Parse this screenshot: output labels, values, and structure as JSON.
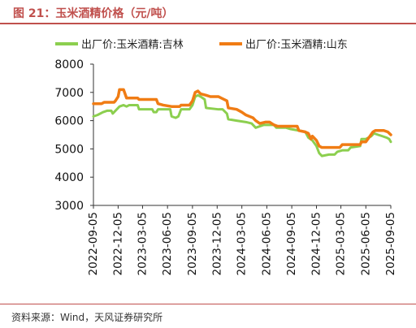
{
  "figure": {
    "title": "图 21：玉米酒精价格（元/吨）"
  },
  "source_note": "资料来源：Wind，天风证券研究所",
  "colors": {
    "accent": "#c0504d",
    "series_jilin": "#8ccf4f",
    "series_shandong": "#f07c14",
    "axis": "#333333"
  },
  "chart_data": {
    "type": "line",
    "title": "",
    "xlabel": "",
    "ylabel": "",
    "ylim": [
      3000,
      8000
    ],
    "yticks": [
      "3000",
      "4000",
      "5000",
      "6000",
      "7000",
      "8000"
    ],
    "xlim": [
      "2022-09-05",
      "2025-09-05"
    ],
    "xticks": [
      "2022-09-05",
      "2022-12-05",
      "2023-03-05",
      "2023-06-05",
      "2023-09-05",
      "2023-12-05",
      "2024-03-05",
      "2024-06-05",
      "2024-09-05",
      "2024-12-05",
      "2025-03-05",
      "2025-06-05",
      "2025-09-05"
    ],
    "grid": false,
    "legend_position": "top",
    "series": [
      {
        "name": "出厂价:玉米酒精:吉林",
        "color": "#8ccf4f",
        "points": [
          [
            "2022-09-05",
            6150
          ],
          [
            "2022-09-20",
            6200
          ],
          [
            "2022-10-10",
            6300
          ],
          [
            "2022-10-25",
            6350
          ],
          [
            "2022-11-10",
            6350
          ],
          [
            "2022-11-15",
            6250
          ],
          [
            "2022-11-25",
            6350
          ],
          [
            "2022-12-10",
            6500
          ],
          [
            "2022-12-25",
            6550
          ],
          [
            "2023-01-05",
            6500
          ],
          [
            "2023-01-15",
            6550
          ],
          [
            "2023-02-15",
            6550
          ],
          [
            "2023-02-20",
            6400
          ],
          [
            "2023-04-10",
            6400
          ],
          [
            "2023-04-15",
            6300
          ],
          [
            "2023-04-25",
            6300
          ],
          [
            "2023-05-01",
            6400
          ],
          [
            "2023-06-15",
            6400
          ],
          [
            "2023-06-20",
            6150
          ],
          [
            "2023-07-05",
            6100
          ],
          [
            "2023-07-15",
            6150
          ],
          [
            "2023-07-25",
            6400
          ],
          [
            "2023-08-25",
            6400
          ],
          [
            "2023-09-05",
            6550
          ],
          [
            "2023-09-15",
            6850
          ],
          [
            "2023-09-25",
            6900
          ],
          [
            "2023-10-05",
            6850
          ],
          [
            "2023-10-20",
            6750
          ],
          [
            "2023-10-25",
            6450
          ],
          [
            "2023-12-10",
            6400
          ],
          [
            "2023-12-25",
            6400
          ],
          [
            "2024-01-10",
            6250
          ],
          [
            "2024-01-15",
            6050
          ],
          [
            "2024-02-15",
            6000
          ],
          [
            "2024-03-20",
            5950
          ],
          [
            "2024-04-10",
            5900
          ],
          [
            "2024-04-25",
            5750
          ],
          [
            "2024-05-10",
            5800
          ],
          [
            "2024-05-25",
            5850
          ],
          [
            "2024-06-15",
            5850
          ],
          [
            "2024-07-01",
            5850
          ],
          [
            "2024-07-10",
            5750
          ],
          [
            "2024-08-15",
            5750
          ],
          [
            "2024-09-01",
            5700
          ],
          [
            "2024-10-01",
            5650
          ],
          [
            "2024-10-25",
            5600
          ],
          [
            "2024-11-05",
            5400
          ],
          [
            "2024-11-20",
            5300
          ],
          [
            "2024-12-05",
            5100
          ],
          [
            "2024-12-15",
            4850
          ],
          [
            "2024-12-25",
            4750
          ],
          [
            "2025-01-20",
            4800
          ],
          [
            "2025-02-10",
            4800
          ],
          [
            "2025-02-20",
            4900
          ],
          [
            "2025-03-10",
            4950
          ],
          [
            "2025-04-01",
            4950
          ],
          [
            "2025-04-10",
            5050
          ],
          [
            "2025-05-15",
            5100
          ],
          [
            "2025-05-20",
            5350
          ],
          [
            "2025-06-05",
            5350
          ],
          [
            "2025-06-25",
            5450
          ],
          [
            "2025-07-05",
            5550
          ],
          [
            "2025-07-20",
            5500
          ],
          [
            "2025-08-05",
            5450
          ],
          [
            "2025-08-20",
            5400
          ],
          [
            "2025-08-30",
            5350
          ],
          [
            "2025-09-05",
            5250
          ]
        ]
      },
      {
        "name": "出厂价:玉米酒精:山东",
        "color": "#f07c14",
        "points": [
          [
            "2022-09-05",
            6600
          ],
          [
            "2022-10-05",
            6600
          ],
          [
            "2022-10-15",
            6650
          ],
          [
            "2022-11-20",
            6650
          ],
          [
            "2022-11-25",
            6700
          ],
          [
            "2022-12-05",
            6850
          ],
          [
            "2022-12-10",
            7100
          ],
          [
            "2022-12-25",
            7100
          ],
          [
            "2023-01-05",
            6800
          ],
          [
            "2023-02-15",
            6800
          ],
          [
            "2023-02-20",
            6750
          ],
          [
            "2023-04-25",
            6750
          ],
          [
            "2023-05-01",
            6600
          ],
          [
            "2023-05-20",
            6550
          ],
          [
            "2023-06-20",
            6500
          ],
          [
            "2023-07-20",
            6500
          ],
          [
            "2023-07-25",
            6550
          ],
          [
            "2023-08-25",
            6550
          ],
          [
            "2023-09-05",
            6700
          ],
          [
            "2023-09-15",
            7000
          ],
          [
            "2023-09-25",
            7050
          ],
          [
            "2023-10-05",
            6950
          ],
          [
            "2023-10-25",
            6900
          ],
          [
            "2023-11-10",
            6850
          ],
          [
            "2023-12-10",
            6850
          ],
          [
            "2023-12-20",
            6800
          ],
          [
            "2024-01-10",
            6700
          ],
          [
            "2024-01-15",
            6450
          ],
          [
            "2024-02-15",
            6400
          ],
          [
            "2024-03-05",
            6300
          ],
          [
            "2024-03-20",
            6200
          ],
          [
            "2024-04-15",
            6100
          ],
          [
            "2024-04-25",
            6000
          ],
          [
            "2024-05-10",
            5900
          ],
          [
            "2024-06-01",
            5950
          ],
          [
            "2024-06-15",
            5950
          ],
          [
            "2024-07-01",
            5850
          ],
          [
            "2024-07-15",
            5800
          ],
          [
            "2024-09-25",
            5800
          ],
          [
            "2024-10-01",
            5650
          ],
          [
            "2024-10-25",
            5600
          ],
          [
            "2024-11-05",
            5550
          ],
          [
            "2024-11-15",
            5350
          ],
          [
            "2024-11-20",
            5450
          ],
          [
            "2024-12-05",
            5300
          ],
          [
            "2024-12-15",
            5100
          ],
          [
            "2024-12-25",
            5050
          ],
          [
            "2025-03-01",
            5050
          ],
          [
            "2025-03-10",
            5150
          ],
          [
            "2025-05-15",
            5150
          ],
          [
            "2025-05-20",
            5250
          ],
          [
            "2025-06-05",
            5250
          ],
          [
            "2025-06-20",
            5450
          ],
          [
            "2025-07-01",
            5600
          ],
          [
            "2025-07-10",
            5650
          ],
          [
            "2025-08-10",
            5650
          ],
          [
            "2025-08-25",
            5600
          ],
          [
            "2025-09-05",
            5500
          ]
        ]
      }
    ]
  }
}
